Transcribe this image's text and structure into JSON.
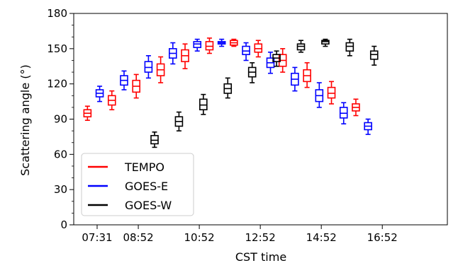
{
  "chart_data": {
    "type": "box",
    "xlabel": "CST time",
    "ylabel": "Scattering angle (°)",
    "ylim": [
      0,
      180
    ],
    "xlim": [
      6.75,
      19.0
    ],
    "x_ticks": [
      {
        "value": 7.5167,
        "label": "07:31"
      },
      {
        "value": 8.8667,
        "label": "08:52"
      },
      {
        "value": 10.8667,
        "label": "10:52"
      },
      {
        "value": 12.8667,
        "label": "12:52"
      },
      {
        "value": 14.8667,
        "label": "14:52"
      },
      {
        "value": 16.8667,
        "label": "16:52"
      }
    ],
    "y_ticks": [
      0,
      30,
      60,
      90,
      120,
      150,
      180
    ],
    "legend_position": "lower-left",
    "series": [
      {
        "name": "TEMPO",
        "color": "#ff0000",
        "boxes": [
          {
            "x": 7.2,
            "whislo": 89,
            "q1": 92,
            "med": 95,
            "q3": 98,
            "whishi": 101
          },
          {
            "x": 8.0,
            "whislo": 98,
            "q1": 102,
            "med": 106,
            "q3": 110,
            "whishi": 114
          },
          {
            "x": 8.8,
            "whislo": 108,
            "q1": 113,
            "med": 118,
            "q3": 123,
            "whishi": 128
          },
          {
            "x": 9.6,
            "whislo": 121,
            "q1": 127,
            "med": 132,
            "q3": 137,
            "whishi": 143
          },
          {
            "x": 10.4,
            "whislo": 133,
            "q1": 139,
            "med": 144,
            "q3": 149,
            "whishi": 154
          },
          {
            "x": 11.2,
            "whislo": 146,
            "q1": 149,
            "med": 152,
            "q3": 156,
            "whishi": 159
          },
          {
            "x": 12.0,
            "whislo": 152,
            "q1": 153,
            "med": 155,
            "q3": 157,
            "whishi": 158
          },
          {
            "x": 12.8,
            "whislo": 143,
            "q1": 147,
            "med": 150,
            "q3": 154,
            "whishi": 157
          },
          {
            "x": 13.6,
            "whislo": 130,
            "q1": 135,
            "med": 140,
            "q3": 145,
            "whishi": 150
          },
          {
            "x": 14.4,
            "whislo": 117,
            "q1": 122,
            "med": 127,
            "q3": 132,
            "whishi": 138
          },
          {
            "x": 15.2,
            "whislo": 103,
            "q1": 108,
            "med": 112,
            "q3": 117,
            "whishi": 122
          },
          {
            "x": 16.0,
            "whislo": 93,
            "q1": 97,
            "med": 100,
            "q3": 103,
            "whishi": 107
          }
        ]
      },
      {
        "name": "GOES-E",
        "color": "#0000ff",
        "boxes": [
          {
            "x": 7.6,
            "whislo": 105,
            "q1": 109,
            "med": 112,
            "q3": 115,
            "whishi": 118
          },
          {
            "x": 8.4,
            "whislo": 115,
            "q1": 119,
            "med": 123,
            "q3": 127,
            "whishi": 131
          },
          {
            "x": 9.2,
            "whislo": 125,
            "q1": 130,
            "med": 134,
            "q3": 139,
            "whishi": 144
          },
          {
            "x": 10.0,
            "whislo": 137,
            "q1": 142,
            "med": 146,
            "q3": 150,
            "whishi": 155
          },
          {
            "x": 10.8,
            "whislo": 148,
            "q1": 151,
            "med": 154,
            "q3": 156,
            "whishi": 158
          },
          {
            "x": 11.6,
            "whislo": 152,
            "q1": 154,
            "med": 155,
            "q3": 156,
            "whishi": 158
          },
          {
            "x": 12.4,
            "whislo": 140,
            "q1": 145,
            "med": 148,
            "q3": 152,
            "whishi": 155
          },
          {
            "x": 13.2,
            "whislo": 129,
            "q1": 134,
            "med": 138,
            "q3": 142,
            "whishi": 147
          },
          {
            "x": 14.0,
            "whislo": 114,
            "q1": 119,
            "med": 124,
            "q3": 129,
            "whishi": 134
          },
          {
            "x": 14.8,
            "whislo": 100,
            "q1": 105,
            "med": 110,
            "q3": 115,
            "whishi": 121
          },
          {
            "x": 15.6,
            "whislo": 86,
            "q1": 91,
            "med": 95,
            "q3": 100,
            "whishi": 104
          },
          {
            "x": 16.4,
            "whislo": 77,
            "q1": 81,
            "med": 84,
            "q3": 87,
            "whishi": 90
          }
        ]
      },
      {
        "name": "GOES-W",
        "color": "#000000",
        "boxes": [
          {
            "x": 9.4,
            "whislo": 66,
            "q1": 69,
            "med": 72,
            "q3": 76,
            "whishi": 79
          },
          {
            "x": 10.2,
            "whislo": 80,
            "q1": 84,
            "med": 88,
            "q3": 92,
            "whishi": 96
          },
          {
            "x": 11.0,
            "whislo": 94,
            "q1": 98,
            "med": 102,
            "q3": 107,
            "whishi": 111
          },
          {
            "x": 11.8,
            "whislo": 108,
            "q1": 112,
            "med": 116,
            "q3": 120,
            "whishi": 125
          },
          {
            "x": 12.6,
            "whislo": 121,
            "q1": 126,
            "med": 130,
            "q3": 134,
            "whishi": 138
          },
          {
            "x": 13.4,
            "whislo": 135,
            "q1": 139,
            "med": 142,
            "q3": 145,
            "whishi": 148
          },
          {
            "x": 14.2,
            "whislo": 147,
            "q1": 149,
            "med": 152,
            "q3": 154,
            "whishi": 157
          },
          {
            "x": 15.0,
            "whislo": 152,
            "q1": 154,
            "med": 156,
            "q3": 157,
            "whishi": 158
          },
          {
            "x": 15.8,
            "whislo": 144,
            "q1": 148,
            "med": 152,
            "q3": 155,
            "whishi": 158
          },
          {
            "x": 16.6,
            "whislo": 136,
            "q1": 141,
            "med": 145,
            "q3": 148,
            "whishi": 152
          }
        ]
      }
    ]
  }
}
